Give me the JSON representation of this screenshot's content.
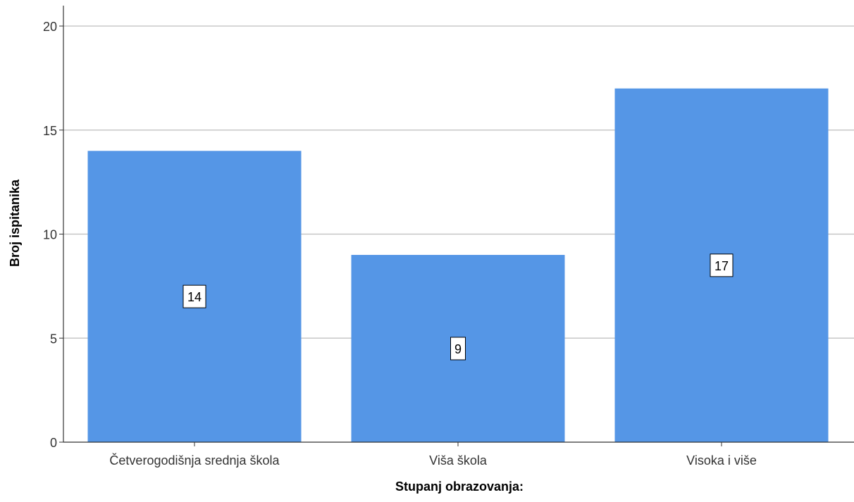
{
  "chart_data": {
    "type": "bar",
    "categories": [
      "Četverogodišnja srednja škola",
      "Viša škola",
      "Visoka i više"
    ],
    "values": [
      14,
      9,
      17
    ],
    "data_labels": [
      "14",
      "9",
      "17"
    ],
    "title": "",
    "xlabel": "Stupanj obrazovanja:",
    "ylabel": "Broj ispitanika",
    "ylim": [
      0,
      21
    ],
    "yticks": [
      0,
      5,
      10,
      15,
      20
    ],
    "ytick_labels": [
      "0",
      "5",
      "10",
      "15",
      "20"
    ],
    "grid": "horizontal",
    "legend": "none",
    "colors": {
      "bar": "#5596e6",
      "grid": "#bdbdbd",
      "axis": "#333333"
    }
  }
}
